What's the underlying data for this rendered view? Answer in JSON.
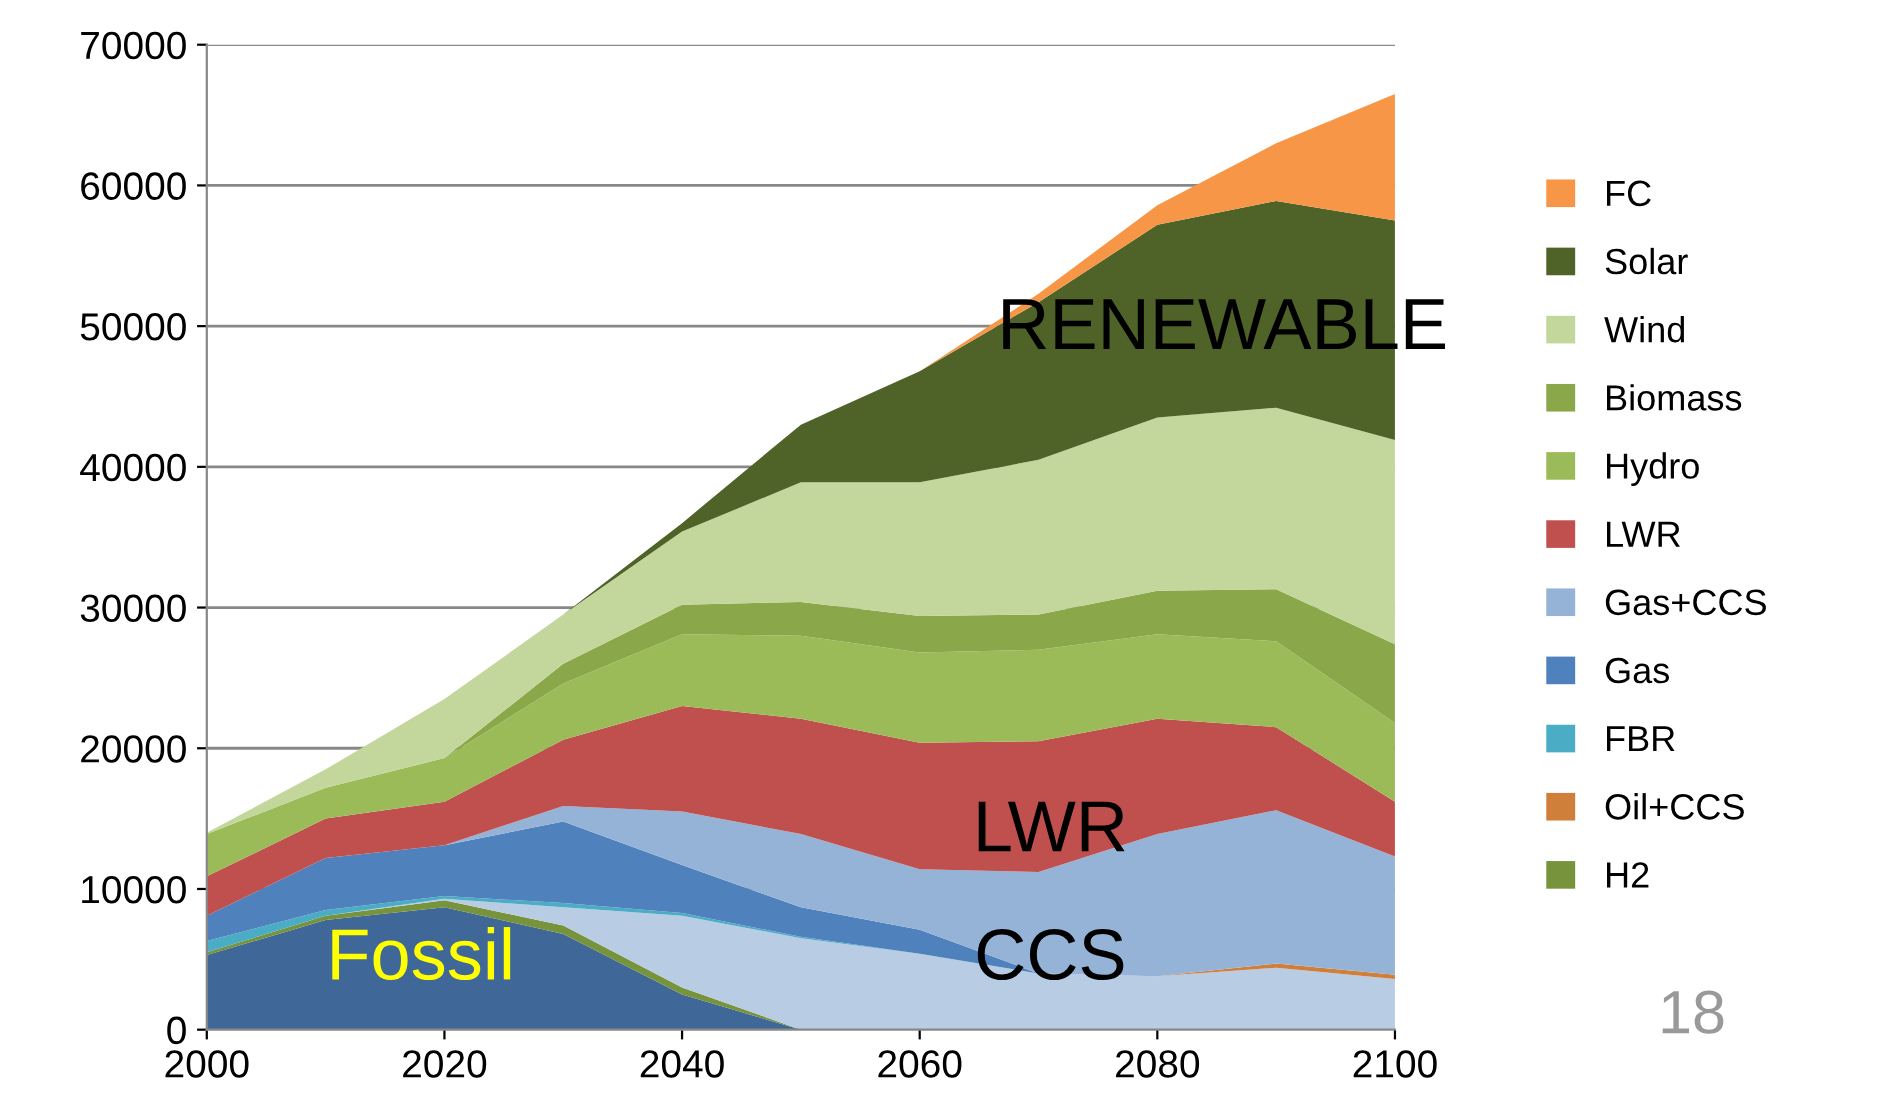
{
  "chart_data": {
    "type": "area",
    "stacked": true,
    "x": [
      2000,
      2010,
      2020,
      2030,
      2040,
      2050,
      2060,
      2070,
      2080,
      2090,
      2100
    ],
    "series": [
      {
        "color": "#3f6797",
        "values": [
          5300,
          7800,
          8700,
          6800,
          2500,
          0,
          null,
          null,
          null,
          null,
          null
        ]
      },
      {
        "name": "H2",
        "color": "#77933c",
        "values": [
          200,
          300,
          500,
          600,
          500,
          0,
          null,
          null,
          null,
          null,
          null
        ]
      },
      {
        "color": "#b8cce4",
        "values": [
          null,
          0,
          100,
          1300,
          5100,
          6500,
          5400,
          4000,
          3800,
          4400,
          3600
        ]
      },
      {
        "name": "Oil+CCS",
        "color": "#d07f3a",
        "values": [
          null,
          null,
          null,
          null,
          null,
          null,
          null,
          null,
          0,
          300,
          300
        ]
      },
      {
        "name": "FBR",
        "color": "#4bacc6",
        "values": [
          800,
          400,
          200,
          300,
          200,
          100,
          0,
          null,
          null,
          null,
          null
        ]
      },
      {
        "name": "Gas",
        "color": "#4f81bd",
        "values": [
          1800,
          3700,
          3600,
          5800,
          3400,
          2100,
          1700,
          0,
          null,
          null,
          null
        ]
      },
      {
        "name": "Gas+CCS",
        "color": "#95b3d7",
        "values": [
          null,
          null,
          0,
          1100,
          3800,
          5200,
          4300,
          7200,
          10100,
          10900,
          8400
        ]
      },
      {
        "name": "LWR",
        "color": "#c0504d",
        "values": [
          2800,
          2800,
          3100,
          4700,
          7500,
          8200,
          9000,
          9300,
          8200,
          5900,
          3900
        ]
      },
      {
        "name": "Hydro",
        "color": "#9bbb59",
        "values": [
          3000,
          2200,
          3100,
          4000,
          5100,
          5900,
          6400,
          6500,
          6000,
          6100,
          5600
        ]
      },
      {
        "name": "Biomass",
        "color": "#8aa84a",
        "values": [
          null,
          null,
          0,
          1400,
          2100,
          2400,
          2600,
          2500,
          3100,
          3700,
          5600
        ]
      },
      {
        "name": "Wind",
        "color": "#c3d69b",
        "values": [
          100,
          1300,
          4200,
          3500,
          5200,
          8500,
          9500,
          11000,
          12300,
          12900,
          14500
        ]
      },
      {
        "name": "Solar",
        "color": "#4f6228",
        "values": [
          null,
          null,
          null,
          0,
          600,
          4100,
          7900,
          11200,
          13700,
          14700,
          15600
        ]
      },
      {
        "name": "FC",
        "color": "#f79646",
        "values": [
          null,
          null,
          null,
          null,
          null,
          null,
          0,
          600,
          1400,
          4100,
          9000
        ]
      }
    ],
    "xlim": [
      2000,
      2100
    ],
    "xticks": [
      2000,
      2020,
      2040,
      2060,
      2080,
      2100
    ],
    "ylim": [
      0,
      70000
    ],
    "yticks": [
      0,
      10000,
      20000,
      30000,
      40000,
      50000,
      60000,
      70000
    ],
    "grid": "y",
    "legend": "right",
    "annotations": [
      "RENEWABLE",
      "LWR",
      "Fossil",
      "CCS",
      "18"
    ]
  }
}
